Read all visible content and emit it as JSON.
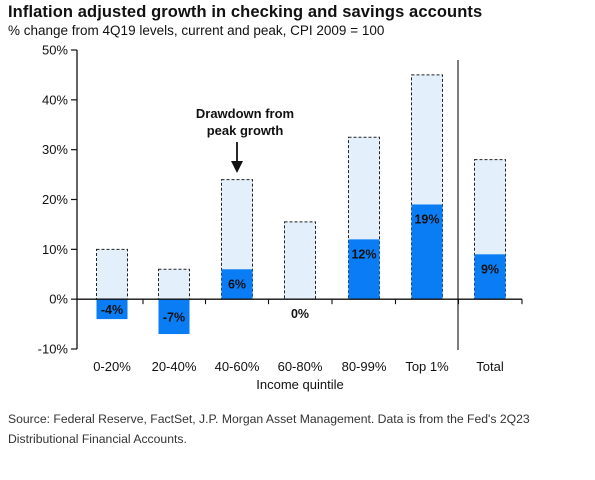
{
  "chart_data": {
    "type": "bar",
    "title": "Inflation adjusted growth in checking and savings accounts",
    "subtitle": "% change from 4Q19 levels, current and peak, CPI 2009 = 100",
    "xlabel": "Income quintile",
    "ylabel": "",
    "categories": [
      "0-20%",
      "20-40%",
      "40-60%",
      "60-80%",
      "80-99%",
      "Top 1%",
      "Total"
    ],
    "ylim": [
      -10,
      50
    ],
    "yticks": [
      -10,
      0,
      10,
      20,
      30,
      40,
      50
    ],
    "ytick_labels": [
      "-10%",
      "0%",
      "10%",
      "20%",
      "30%",
      "40%",
      "50%"
    ],
    "series": [
      {
        "name": "Current",
        "values": [
          -4,
          -7,
          6,
          0,
          12,
          19,
          9
        ],
        "labels": [
          "-4%",
          "-7%",
          "6%",
          "0%",
          "12%",
          "19%",
          "9%"
        ],
        "color": "#0a7df5"
      },
      {
        "name": "Peak",
        "values": [
          10,
          6,
          24,
          15.5,
          32.5,
          45,
          28
        ],
        "color": "#e3f0fb"
      }
    ],
    "annotation": {
      "text_line1": "Drawdown from",
      "text_line2": "peak growth"
    },
    "separator_before": "Total",
    "grid": false,
    "legend": "none"
  },
  "source_text": "Source: Federal Reserve, FactSet, J.P. Morgan Asset Management. Data is from the Fed's 2Q23 Distributional Financial Accounts."
}
